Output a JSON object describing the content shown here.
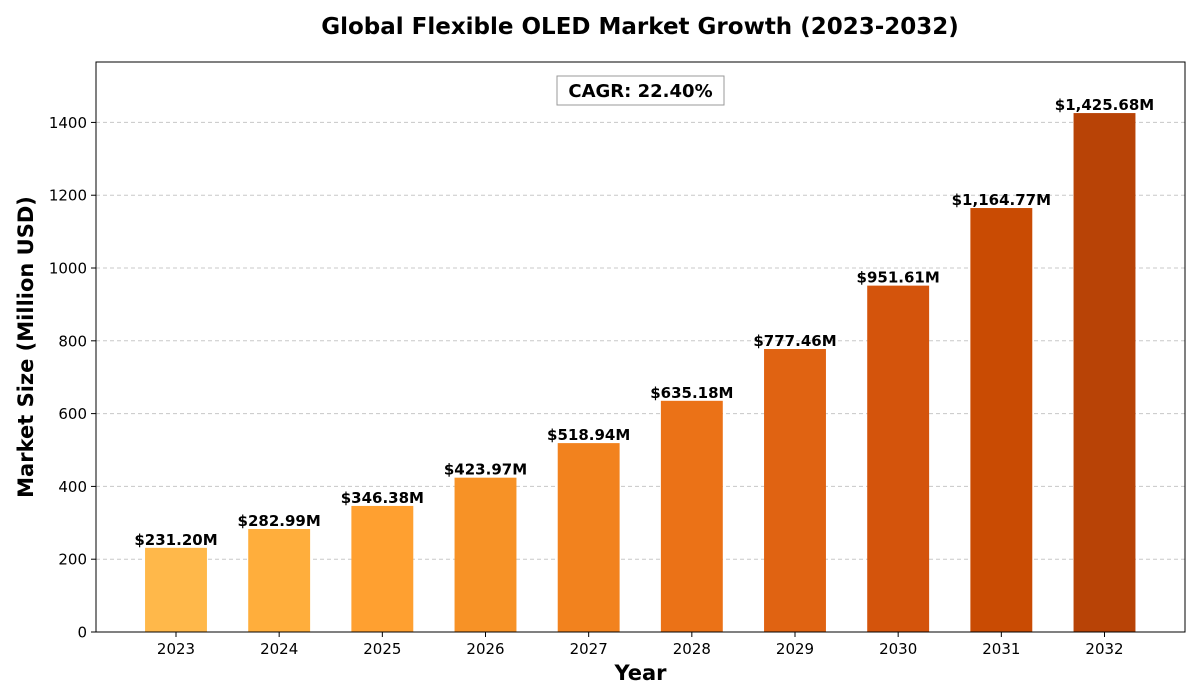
{
  "chart_data": {
    "type": "bar",
    "title": "Global Flexible OLED Market Growth (2023-2032)",
    "xlabel": "Year",
    "ylabel": "Market Size (Million USD)",
    "categories": [
      "2023",
      "2024",
      "2025",
      "2026",
      "2027",
      "2028",
      "2029",
      "2030",
      "2031",
      "2032"
    ],
    "values": [
      231.2,
      282.99,
      346.38,
      423.97,
      518.94,
      635.18,
      777.46,
      951.61,
      1164.77,
      1425.68
    ],
    "data_labels": [
      "$231.20M",
      "$282.99M",
      "$346.38M",
      "$423.97M",
      "$518.94M",
      "$635.18M",
      "$777.46M",
      "$951.61M",
      "$1,164.77M",
      "$1,425.68M"
    ],
    "colors": [
      "#FFB84A",
      "#FFAE3C",
      "#FFA030",
      "#F79226",
      "#F2821E",
      "#EB7217",
      "#E06312",
      "#D4540C",
      "#C94B03",
      "#B84306"
    ],
    "ylim": [
      0,
      1566
    ],
    "yticks": [
      0,
      200,
      400,
      600,
      800,
      1000,
      1200,
      1400
    ],
    "grid": true,
    "annotation": "CAGR: 22.40%"
  }
}
